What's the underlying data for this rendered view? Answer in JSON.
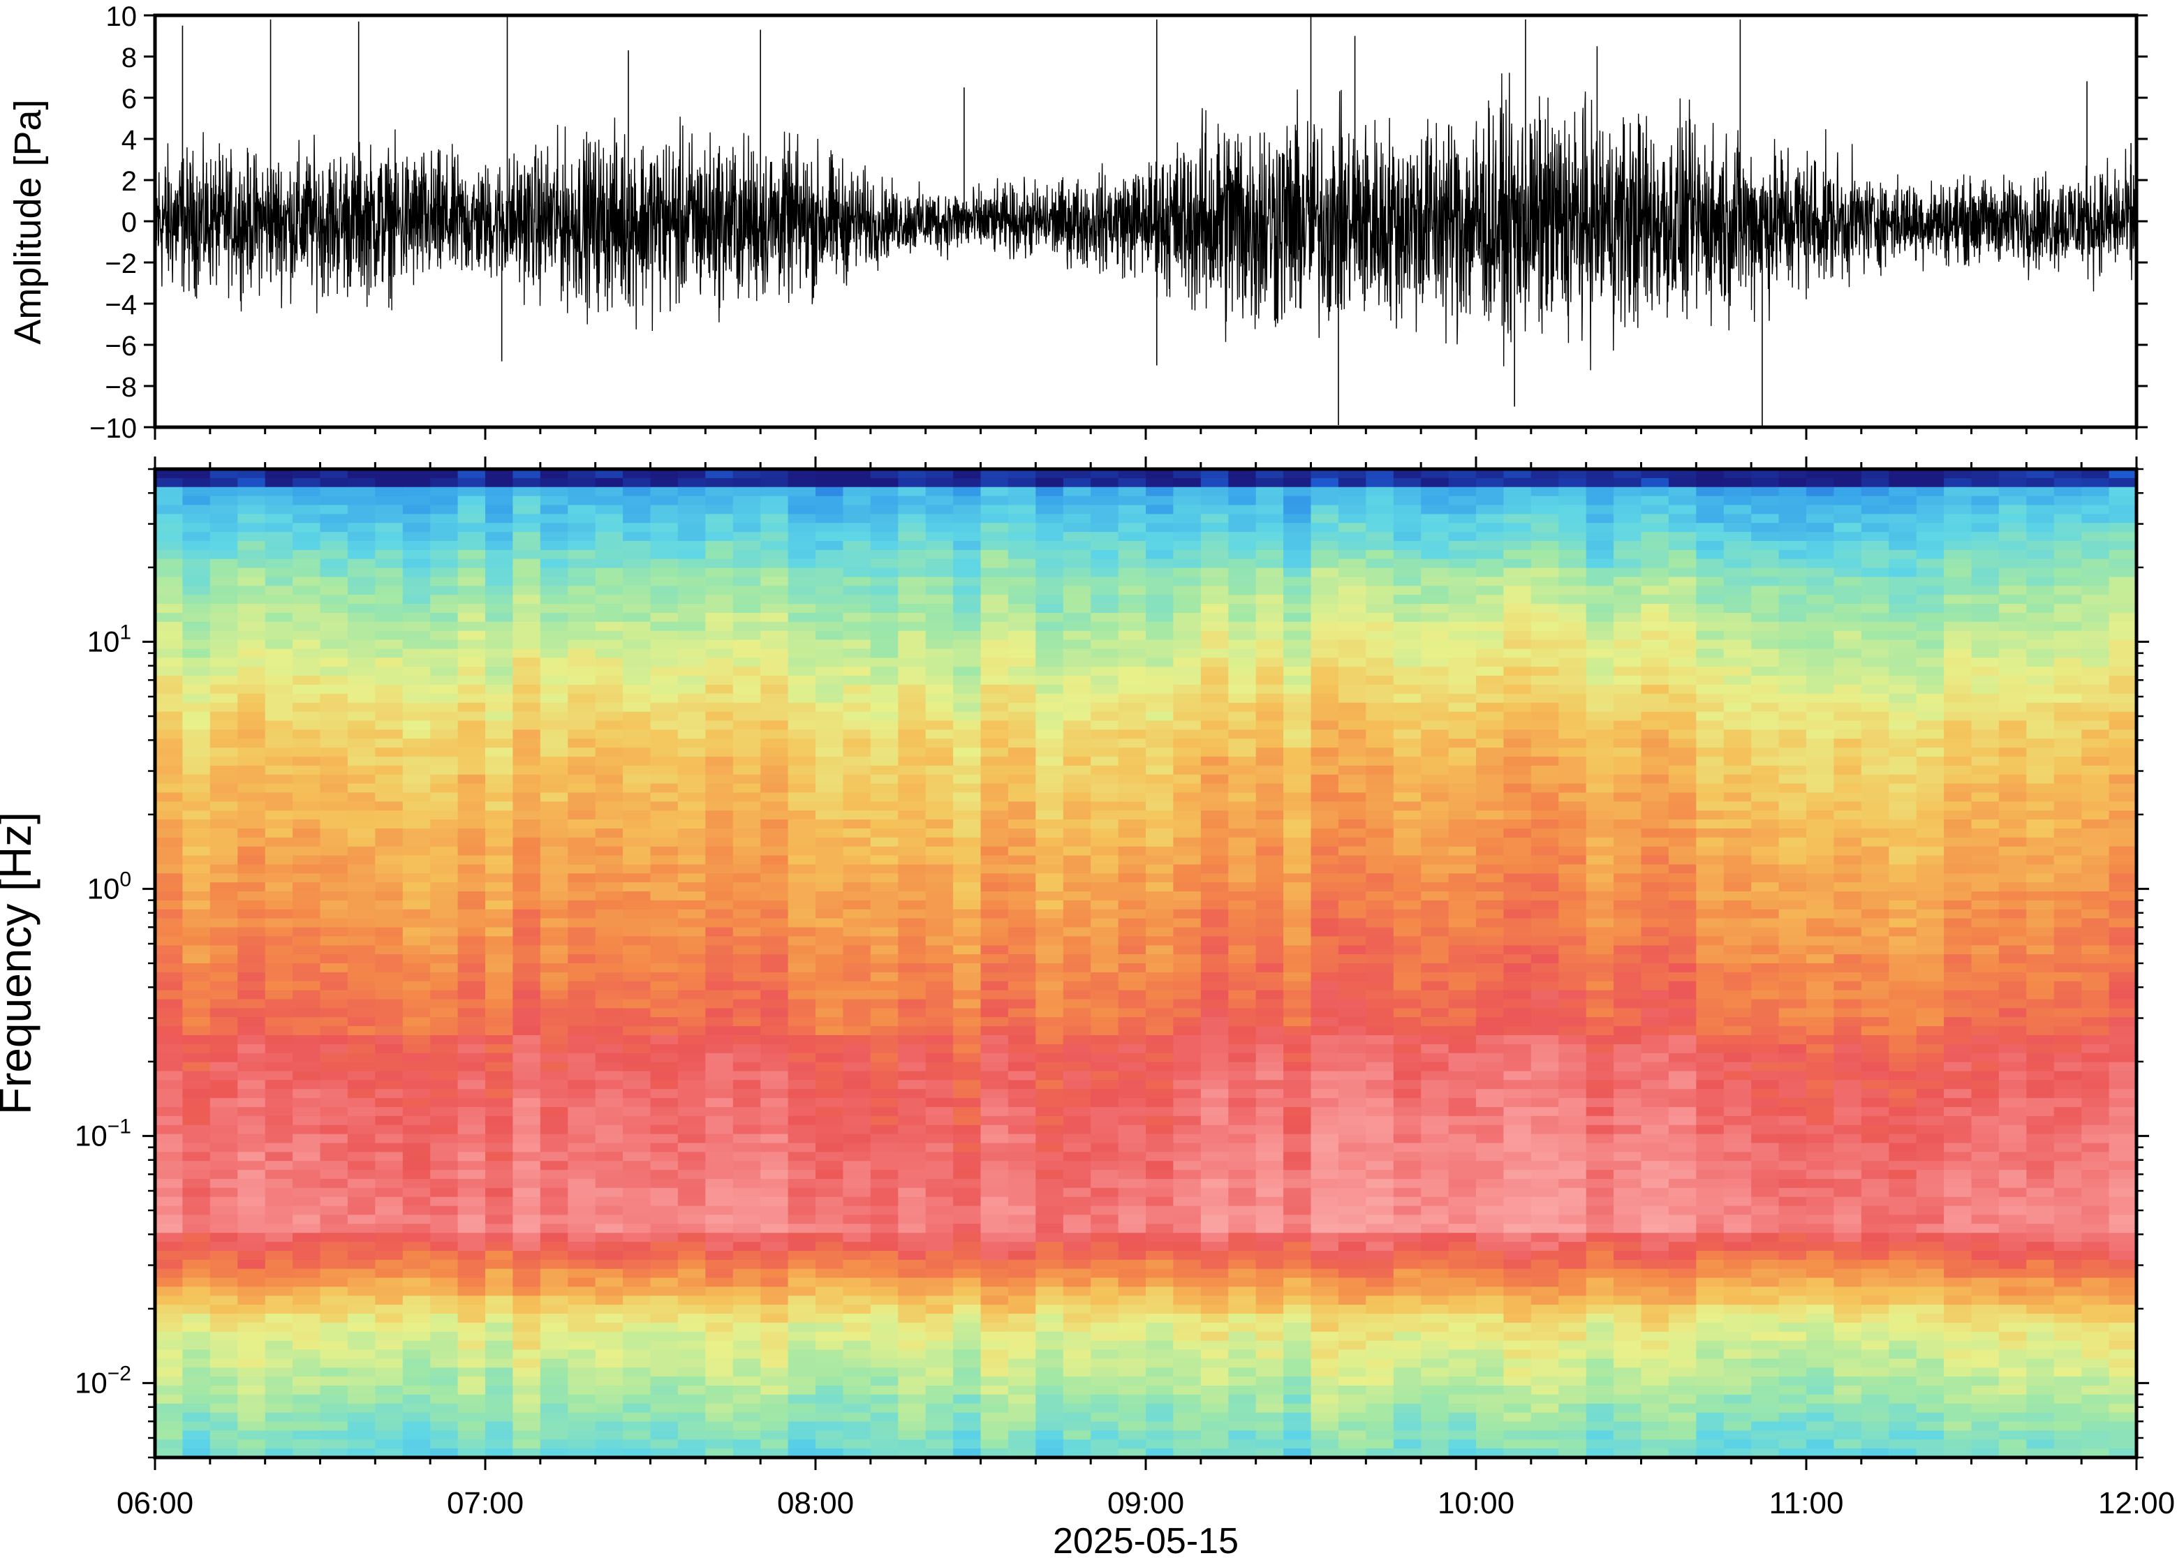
{
  "chart_data": [
    {
      "type": "line",
      "panel": "waveform",
      "title": "",
      "xlabel": "",
      "ylabel": "Amplitude [Pa]",
      "ylim": [
        -10,
        10
      ],
      "yticks": [
        -10,
        -8,
        -6,
        -4,
        -2,
        0,
        2,
        4,
        6,
        8,
        10
      ],
      "ytick_labels": [
        "−10",
        "−8",
        "−6",
        "−4",
        "−2",
        "0",
        "2",
        "4",
        "6",
        "8",
        "10"
      ],
      "x_start": "06:00",
      "x_end": "12:00",
      "color": "#000000",
      "series": [
        {
          "x": [
            "06:00",
            "06:15",
            "06:30",
            "06:45",
            "07:00",
            "07:15",
            "07:30",
            "07:45",
            "08:00",
            "08:15",
            "08:30",
            "08:45",
            "09:00",
            "09:15",
            "09:30",
            "09:45",
            "10:00",
            "10:15",
            "10:30",
            "10:45",
            "11:00",
            "11:15",
            "11:30",
            "11:45",
            "12:00"
          ],
          "envelope_max": [
            4.5,
            4.0,
            4.5,
            4.5,
            3.5,
            5.0,
            5.5,
            5.0,
            4.5,
            2.0,
            2.0,
            2.5,
            3.5,
            7.0,
            6.5,
            6.0,
            7.0,
            7.0,
            6.5,
            5.5,
            4.5,
            2.5,
            2.5,
            3.0,
            3.5
          ],
          "peaks": [
            {
              "x": "06:05",
              "y": 9.5
            },
            {
              "x": "06:21",
              "y": 9.8
            },
            {
              "x": "06:37",
              "y": 9.7
            },
            {
              "x": "07:04",
              "y": 10.0
            },
            {
              "x": "07:26",
              "y": 8.3
            },
            {
              "x": "07:50",
              "y": 9.3
            },
            {
              "x": "08:27",
              "y": 6.5
            },
            {
              "x": "09:02",
              "y": 9.8
            },
            {
              "x": "09:30",
              "y": 10.0
            },
            {
              "x": "09:38",
              "y": 9.0
            },
            {
              "x": "10:09",
              "y": 9.8
            },
            {
              "x": "10:22",
              "y": 8.5
            },
            {
              "x": "10:48",
              "y": 9.8
            },
            {
              "x": "11:51",
              "y": 6.8
            },
            {
              "x": "11:59",
              "y": 3.8
            },
            {
              "x": "07:03",
              "y": -6.8
            },
            {
              "x": "09:35",
              "y": -9.9
            },
            {
              "x": "10:52",
              "y": -10.0
            },
            {
              "x": "09:02",
              "y": -7.0
            },
            {
              "x": "10:07",
              "y": -9.0
            }
          ]
        }
      ]
    },
    {
      "type": "heatmap",
      "panel": "spectrogram",
      "title": "",
      "xlabel": "2025-05-15",
      "ylabel": "Frequency [Hz]",
      "y_scale": "log",
      "ylim": [
        0.005,
        50
      ],
      "yticks": [
        0.01,
        0.1,
        1,
        10
      ],
      "ytick_labels": [
        {
          "base": "10",
          "exp": "−2"
        },
        {
          "base": "10",
          "exp": "−1"
        },
        {
          "base": "10",
          "exp": "0"
        },
        {
          "base": "10",
          "exp": "1"
        }
      ],
      "xticks": [
        "06:00",
        "07:00",
        "08:00",
        "09:00",
        "10:00",
        "11:00",
        "12:00"
      ],
      "x_start": "06:00",
      "x_end": "12:00",
      "colormap": [
        "#1a1a80",
        "#1e5fd8",
        "#3aa7ea",
        "#5fd6e6",
        "#9fe7a8",
        "#e8f08a",
        "#f5c25a",
        "#f48a4a",
        "#ec5757",
        "#f78e8e",
        "#fbb0ad"
      ],
      "colormap_note_colors": {
        "low": "#1a1a80",
        "high": "#fbb0ad"
      }
    }
  ]
}
